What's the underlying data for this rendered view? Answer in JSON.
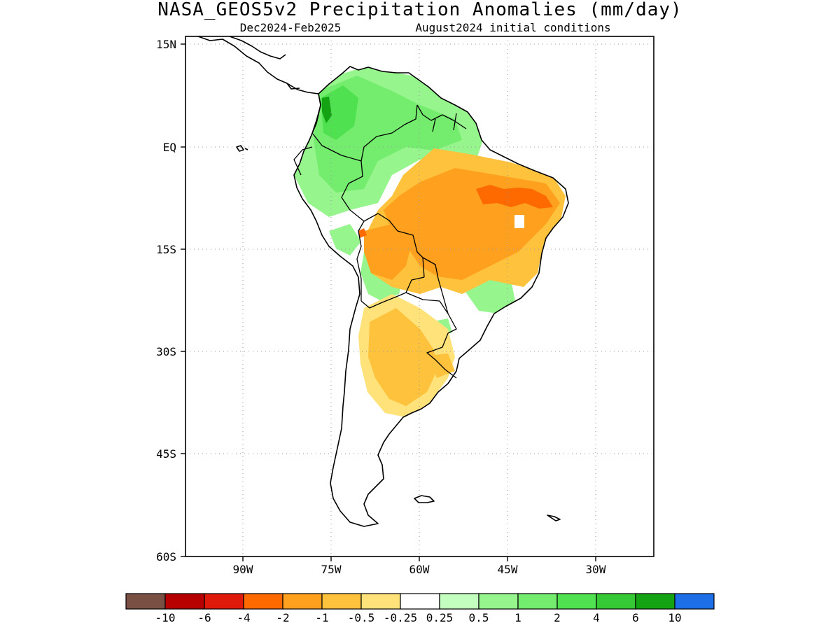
{
  "title": "NASA_GEOS5v2 Precipitation Anomalies (mm/day)",
  "subtitle_period": "Dec2024-Feb2025",
  "subtitle_init": "August2024 initial conditions",
  "lat_labels": [
    "15N",
    "EQ",
    "15S",
    "30S",
    "45S",
    "60S"
  ],
  "lon_labels": [
    "90W",
    "75W",
    "60W",
    "45W",
    "30W"
  ],
  "colorbar": {
    "colors": [
      "#7a4f44",
      "#b70000",
      "#df1a0a",
      "#ff6a00",
      "#ffa01e",
      "#ffc23c",
      "#ffe27a",
      "#ffffff",
      "#c3ffbf",
      "#96f58c",
      "#74ed6e",
      "#4fe14f",
      "#35c935",
      "#13a313",
      "#1d6fe8"
    ],
    "labels": [
      "-10",
      "-6",
      "-4",
      "-2",
      "-1",
      "-0.5",
      "-0.25",
      "0.25",
      "0.5",
      "1",
      "2",
      "4",
      "6",
      "10"
    ]
  },
  "palette": {
    "orange": "#ffa01e",
    "light_orange": "#ffc23c",
    "pale_yellow": "#ffe27a",
    "red_orange": "#ff6a00",
    "red": "#df1a0a",
    "light_green": "#96f58c",
    "green": "#74ed6e",
    "mid_green": "#4fe14f",
    "dark_green": "#35c935",
    "deep_green": "#13a313"
  }
}
